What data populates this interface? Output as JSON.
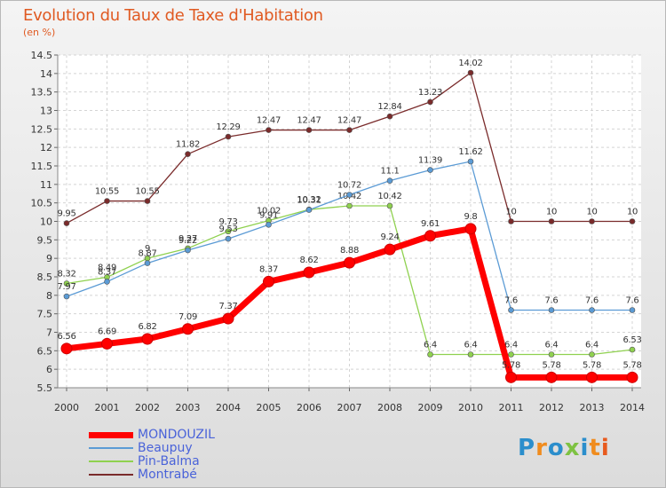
{
  "title": "Evolution du Taux de Taxe d'Habitation",
  "subtitle": "(en %)",
  "logo_letters": [
    "P",
    "r",
    "o",
    "x",
    "i",
    "t",
    "i"
  ],
  "chart_data": {
    "type": "line",
    "x": [
      "2000",
      "2001",
      "2002",
      "2003",
      "2004",
      "2005",
      "2006",
      "2007",
      "2008",
      "2009",
      "2010",
      "2011",
      "2012",
      "2013",
      "2014"
    ],
    "ylim": [
      5.5,
      14.5
    ],
    "yticks": [
      "5.5",
      "6",
      "6.5",
      "7",
      "7.5",
      "8",
      "8.5",
      "9",
      "9.5",
      "10",
      "10.5",
      "11",
      "11.5",
      "12",
      "12.5",
      "13",
      "13.5",
      "14",
      "14.5"
    ],
    "grid": true,
    "legend_position": "bottom-left",
    "series": [
      {
        "name": "MONDOUZIL",
        "color": "#ff0000",
        "values": [
          6.56,
          6.69,
          6.82,
          7.09,
          7.37,
          8.37,
          8.62,
          8.88,
          9.24,
          9.61,
          9.8,
          5.78,
          5.78,
          5.78,
          5.78
        ],
        "labels": [
          "6.56",
          "6.69",
          "6.82",
          "7.09",
          "7.37",
          "8.37",
          "8.62",
          "8.88",
          "9.24",
          "9.61",
          "9.8",
          "5.78",
          "5.78",
          "5.78",
          "5.78"
        ]
      },
      {
        "name": "Beaupuy",
        "color": "#5b9bd5",
        "values": [
          7.97,
          8.37,
          8.87,
          9.22,
          9.53,
          9.91,
          10.31,
          10.72,
          11.1,
          11.39,
          11.62,
          7.6,
          7.6,
          7.6,
          7.6
        ],
        "labels": [
          "7.97",
          "8.37",
          "8.87",
          "9.22",
          "9.53",
          "9.91",
          "10.31",
          "10.72",
          "11.1",
          "11.39",
          "11.62",
          "7.6",
          "7.6",
          "7.6",
          "7.6"
        ]
      },
      {
        "name": "Pin-Balma",
        "color": "#8fd14f",
        "values": [
          8.32,
          8.49,
          9,
          9.27,
          9.73,
          10.02,
          10.32,
          10.42,
          10.42,
          6.4,
          6.4,
          6.4,
          6.4,
          6.4,
          6.53
        ],
        "labels": [
          "8.32",
          "8.49",
          "9",
          "9.27",
          "9.73",
          "10.02",
          "10.32",
          "10.42",
          "10.42",
          "6.4",
          "6.4",
          "6.4",
          "6.4",
          "6.4",
          "6.53"
        ]
      },
      {
        "name": "Montrabé",
        "color": "#7a2b2b",
        "values": [
          9.95,
          10.55,
          10.55,
          11.82,
          12.29,
          12.47,
          12.47,
          12.47,
          12.84,
          13.23,
          14.02,
          10,
          10,
          10,
          10
        ],
        "labels": [
          "9.95",
          "10.55",
          "10.55",
          "11.82",
          "12.29",
          "12.47",
          "12.47",
          "12.47",
          "12.84",
          "13.23",
          "14.02",
          "10",
          "10",
          "10",
          "10"
        ]
      }
    ]
  }
}
